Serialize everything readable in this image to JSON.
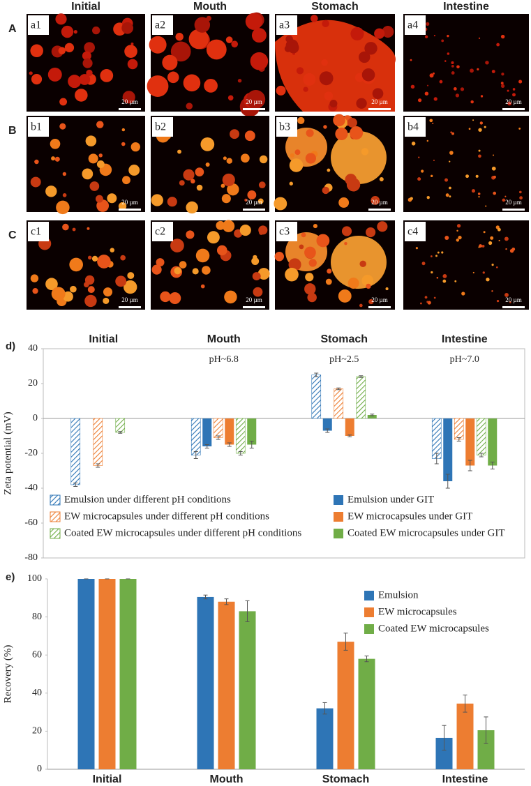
{
  "images": {
    "columns": [
      "Initial",
      "Mouth",
      "Stomach",
      "Intestine"
    ],
    "rows": [
      {
        "letter": "A",
        "panels": [
          "a1",
          "a2",
          "a3",
          "a4"
        ]
      },
      {
        "letter": "B",
        "panels": [
          "b1",
          "b2",
          "b3",
          "b4"
        ]
      },
      {
        "letter": "C",
        "panels": [
          "c1",
          "c2",
          "c3",
          "c4"
        ]
      }
    ],
    "scale_bar": "20 µm"
  },
  "chart_data": [
    {
      "type": "bar",
      "panel_label": "d)",
      "ylabel": "Zeta potential (mV)",
      "categories": [
        "Initial",
        "Mouth",
        "Stomach",
        "Intestine"
      ],
      "category_labels": "top",
      "annotations": [
        null,
        "pH~6.8",
        "pH~2.5",
        "pH~7.0"
      ],
      "ylim": [
        -80,
        40
      ],
      "yticks": [
        40,
        20,
        0,
        -20,
        -40,
        -60,
        -80
      ],
      "grid": false,
      "legend": "bottom",
      "series": [
        {
          "name": "Emulsion under different pH conditions",
          "color": "#2e75b6",
          "hatched": true,
          "values": [
            -38,
            -21,
            25,
            -23
          ],
          "errors": [
            1,
            2,
            1,
            3
          ]
        },
        {
          "name": "Emulsion under GIT",
          "color": "#2e75b6",
          "hatched": false,
          "values": [
            null,
            -16,
            -7,
            -36
          ],
          "errors": [
            null,
            1,
            1,
            4
          ]
        },
        {
          "name": "EW microcapsules under different pH conditions",
          "color": "#ed7d31",
          "hatched": true,
          "values": [
            -27,
            -11,
            17,
            -12
          ],
          "errors": [
            1,
            1,
            0.5,
            1
          ]
        },
        {
          "name": "EW microcapsules under GIT",
          "color": "#ed7d31",
          "hatched": false,
          "values": [
            null,
            -15,
            -10,
            -27
          ],
          "errors": [
            null,
            1,
            0.5,
            3
          ]
        },
        {
          "name": "Coated EW microcapsules under different pH conditions",
          "color": "#70ad47",
          "hatched": true,
          "values": [
            -8,
            -20,
            24,
            -21
          ],
          "errors": [
            0.5,
            1,
            0.5,
            1
          ]
        },
        {
          "name": "Coated EW microcapsules under GIT",
          "color": "#70ad47",
          "hatched": false,
          "values": [
            null,
            -15,
            2,
            -27
          ],
          "errors": [
            null,
            2,
            0.5,
            2
          ]
        }
      ]
    },
    {
      "type": "bar",
      "panel_label": "e)",
      "ylabel": "Recovery (%)",
      "categories": [
        "Initial",
        "Mouth",
        "Stomach",
        "Intestine"
      ],
      "category_labels": "bottom",
      "ylim": [
        0,
        100
      ],
      "yticks": [
        0,
        20,
        40,
        60,
        80,
        100
      ],
      "grid": false,
      "legend": "upper right",
      "series": [
        {
          "name": "Emulsion",
          "color": "#2e75b6",
          "hatched": false,
          "values": [
            100,
            90.5,
            32,
            16.5
          ],
          "errors": [
            0,
            1,
            3,
            6.5
          ]
        },
        {
          "name": "EW microcapsules",
          "color": "#ed7d31",
          "hatched": false,
          "values": [
            100,
            88,
            67,
            34.5
          ],
          "errors": [
            0,
            1.5,
            4.5,
            4.5
          ]
        },
        {
          "name": "Coated EW microcapsules",
          "color": "#70ad47",
          "hatched": false,
          "values": [
            100,
            83,
            58,
            20.5
          ],
          "errors": [
            0,
            5.5,
            1.5,
            7
          ]
        }
      ]
    }
  ]
}
